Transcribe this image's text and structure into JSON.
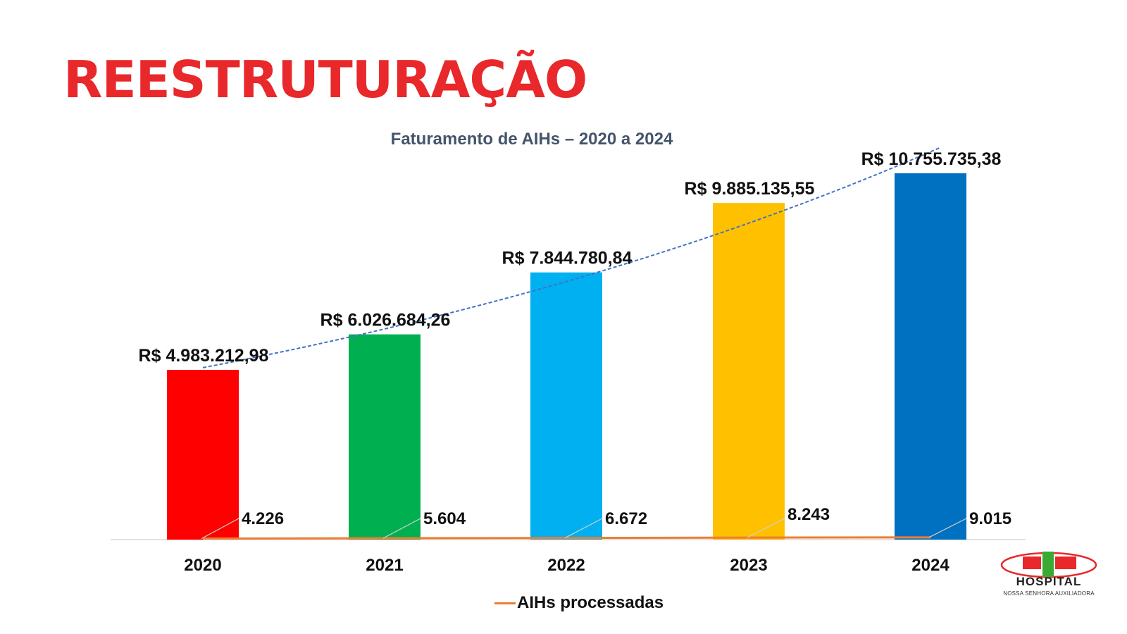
{
  "slide_title": "REESTRUTURAÇÃO",
  "chart_data": {
    "type": "bar",
    "title": "Faturamento de AIHs – 2020 a 2024",
    "categories": [
      "2020",
      "2021",
      "2022",
      "2023",
      "2024"
    ],
    "series": [
      {
        "values": [
          4983212.98,
          6026684.26,
          7844780.84,
          9885135.55,
          10755735.38
        ],
        "value_labels": [
          "R$ 4.983.212,98",
          "R$ 6.026.684,26",
          "R$ 7.844.780,84",
          "R$ 9.885.135,55",
          "R$ 10.755.735,38"
        ],
        "colors": [
          "#ff0000",
          "#00b050",
          "#00b0f0",
          "#ffc000",
          "#0070c0"
        ]
      },
      {
        "name": "AIHs processadas",
        "type": "line",
        "values": [
          4226,
          5604,
          6672,
          8243,
          9015
        ],
        "value_labels": [
          "4.226",
          "5.604",
          "6.672",
          "8.243",
          "9.015"
        ],
        "color": "#ed7d31"
      }
    ],
    "trendline": {
      "type": "exponential",
      "style": "dotted",
      "color": "#4472c4"
    },
    "ylim": [
      0,
      11500000
    ],
    "legend": "bottom",
    "grid": false
  },
  "logo": {
    "name": "HOSPITAL",
    "subtitle": "NOSSA SENHORA AUXILIADORA",
    "colors": {
      "red": "#e8282b",
      "green": "#3aaa35"
    }
  }
}
